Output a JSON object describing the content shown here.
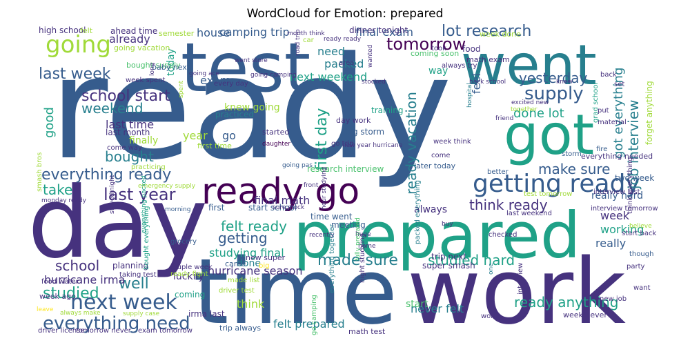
{
  "title": "WordCloud for Emotion: prepared",
  "palette": [
    "#440154",
    "#46327e",
    "#365c8d",
    "#277f8e",
    "#1fa187",
    "#4ac16d",
    "#a0da39",
    "#fde725"
  ],
  "words": [
    {
      "t": "ready",
      "c": 2,
      "v": 0
    },
    {
      "t": "time",
      "c": 2,
      "v": 0
    },
    {
      "t": "day",
      "c": 1,
      "v": 0
    },
    {
      "t": "work",
      "c": 1,
      "v": 0
    },
    {
      "t": "test",
      "c": 2,
      "v": 0
    },
    {
      "t": "went",
      "c": 3,
      "v": 0
    },
    {
      "t": "prepared",
      "c": 4,
      "v": 0
    },
    {
      "t": "got",
      "c": 4,
      "v": 0
    },
    {
      "t": "ready go",
      "c": 0,
      "v": 0
    },
    {
      "t": "getting ready",
      "c": 2,
      "v": 0
    },
    {
      "t": "going",
      "c": 6,
      "v": 0
    },
    {
      "t": "next week",
      "c": 2,
      "v": 0
    },
    {
      "t": "everything need",
      "c": 2,
      "v": 0
    },
    {
      "t": "last week",
      "c": 2,
      "v": 0
    },
    {
      "t": "everything ready",
      "c": 2,
      "v": 0
    },
    {
      "t": "tomorrow",
      "c": 0,
      "v": 0
    },
    {
      "t": "supply",
      "c": 2,
      "v": 0
    },
    {
      "t": "school start",
      "c": 1,
      "v": 0
    },
    {
      "t": "last year",
      "c": 1,
      "v": 0
    },
    {
      "t": "lot research",
      "c": 2,
      "v": 0
    },
    {
      "t": "job interview",
      "c": 3,
      "v": 1
    },
    {
      "t": "ready vacation",
      "c": 3,
      "v": 1
    },
    {
      "t": "first day",
      "c": 4,
      "v": 1
    },
    {
      "t": "make sure",
      "c": 2,
      "v": 0
    },
    {
      "t": "think ready",
      "c": 1,
      "v": 0
    },
    {
      "t": "felt ready",
      "c": 4,
      "v": 0
    },
    {
      "t": "ready anything",
      "c": 4,
      "v": 0
    },
    {
      "t": "studied hard",
      "c": 4,
      "v": 0
    },
    {
      "t": "made sure",
      "c": 3,
      "v": 0
    },
    {
      "t": "yesterday",
      "c": 2,
      "v": 0
    },
    {
      "t": "weekend",
      "c": 3,
      "v": 0
    },
    {
      "t": "bought",
      "c": 3,
      "v": 0
    },
    {
      "t": "school",
      "c": 1,
      "v": 0
    },
    {
      "t": "studied",
      "c": 4,
      "v": 0
    },
    {
      "t": "well",
      "c": 3,
      "v": 0
    },
    {
      "t": "getting",
      "c": 2,
      "v": 0
    },
    {
      "t": "take",
      "c": 4,
      "v": 0
    },
    {
      "t": "done lot",
      "c": 4,
      "v": 0
    },
    {
      "t": "got everything",
      "c": 3,
      "v": 1
    },
    {
      "t": "forget anything",
      "c": 6,
      "v": 1
    },
    {
      "t": "camping trip",
      "c": 2,
      "v": 0
    },
    {
      "t": "house",
      "c": 2,
      "v": 0
    },
    {
      "t": "final exam",
      "c": 2,
      "v": 0
    },
    {
      "t": "need",
      "c": 3,
      "v": 0
    },
    {
      "t": "packed",
      "c": 3,
      "v": 0
    },
    {
      "t": "exam",
      "c": 2,
      "v": 0
    },
    {
      "t": "next weekend",
      "c": 4,
      "v": 0
    },
    {
      "t": "already",
      "c": 1,
      "v": 0
    },
    {
      "t": "good",
      "c": 4,
      "v": 1
    },
    {
      "t": "last time",
      "c": 1,
      "v": 0
    },
    {
      "t": "finally",
      "c": 6,
      "v": 0
    },
    {
      "t": "year",
      "c": 6,
      "v": 0
    },
    {
      "t": "today",
      "c": 4,
      "v": 1
    },
    {
      "t": "week",
      "c": 1,
      "v": 0
    },
    {
      "t": "working",
      "c": 4,
      "v": 0
    },
    {
      "t": "really",
      "c": 2,
      "v": 0
    },
    {
      "t": "feel",
      "c": 2,
      "v": 1
    },
    {
      "t": "way",
      "c": 4,
      "v": 0
    },
    {
      "t": "always",
      "c": 1,
      "v": 0
    },
    {
      "t": "never felt",
      "c": 3,
      "v": 0
    },
    {
      "t": "felt prepared",
      "c": 3,
      "v": 0
    },
    {
      "t": "think",
      "c": 6,
      "v": 0
    },
    {
      "t": "hurricane irma",
      "c": 1,
      "v": 0
    },
    {
      "t": "hurricane season",
      "c": 1,
      "v": 0
    },
    {
      "t": "studying final",
      "c": 4,
      "v": 0
    },
    {
      "t": "knew going",
      "c": 6,
      "v": 0
    },
    {
      "t": "final math",
      "c": 1,
      "v": 0
    },
    {
      "t": "research interview",
      "c": 5,
      "v": 0
    },
    {
      "t": "go",
      "c": 2,
      "v": 0
    },
    {
      "t": "done",
      "c": 3,
      "v": 0
    },
    {
      "t": "luckily",
      "c": 1,
      "v": 0
    },
    {
      "t": "coming",
      "c": 4,
      "v": 0
    },
    {
      "t": "start",
      "c": 5,
      "v": 0
    },
    {
      "t": "really hard",
      "c": 2,
      "v": 0
    },
    {
      "t": "time went",
      "c": 2,
      "v": 0
    },
    {
      "t": "meeting",
      "c": 2,
      "v": 0
    },
    {
      "t": "first",
      "c": 2,
      "v": 0
    },
    {
      "t": "start school",
      "c": 2,
      "v": 0
    },
    {
      "t": "last month",
      "c": 1,
      "v": 0
    },
    {
      "t": "trip next",
      "c": 1,
      "v": 0
    },
    {
      "t": "super smash",
      "c": 1,
      "v": 0
    },
    {
      "t": "high school",
      "c": 1,
      "v": 0
    },
    {
      "t": "felt",
      "c": 6,
      "v": 0
    },
    {
      "t": "ahead time",
      "c": 1,
      "v": 0
    },
    {
      "t": "semester",
      "c": 6,
      "v": 0
    },
    {
      "t": "dinner tonight",
      "c": 1,
      "v": 0
    },
    {
      "t": "went store",
      "c": 1,
      "v": 0
    },
    {
      "t": "week done",
      "c": 6,
      "v": 0
    },
    {
      "t": "coming soon",
      "c": 5,
      "v": 0
    },
    {
      "t": "food",
      "c": 1,
      "v": 0
    },
    {
      "t": "math exam",
      "c": 1,
      "v": 0
    },
    {
      "t": "going vacation",
      "c": 6,
      "v": 0
    },
    {
      "t": "bought supply",
      "c": 5,
      "v": 0
    },
    {
      "t": "baby next",
      "c": 2,
      "v": 0
    },
    {
      "t": "week spent",
      "c": 1,
      "v": 0
    },
    {
      "t": "training",
      "c": 4,
      "v": 0
    },
    {
      "t": "day work",
      "c": 1,
      "v": 0
    },
    {
      "t": "big storm",
      "c": 2,
      "v": 0
    },
    {
      "t": "go trip",
      "c": 1,
      "v": 0
    },
    {
      "t": "started",
      "c": 1,
      "v": 0
    },
    {
      "t": "daughter",
      "c": 0,
      "v": 0
    },
    {
      "t": "practiced",
      "c": 3,
      "v": 0
    },
    {
      "t": "first time",
      "c": 6,
      "v": 0
    },
    {
      "t": "come way",
      "c": 1,
      "v": 0
    },
    {
      "t": "practicing",
      "c": 6,
      "v": 0
    },
    {
      "t": "emergency supply",
      "c": 6,
      "v": 0
    },
    {
      "t": "monday ready",
      "c": 1,
      "v": 0
    },
    {
      "t": "morning",
      "c": 2,
      "v": 0
    },
    {
      "t": "stayed night",
      "c": 1,
      "v": 1
    },
    {
      "t": "planning",
      "c": 1,
      "v": 0
    },
    {
      "t": "taking test",
      "c": 1,
      "v": 0
    },
    {
      "t": "couple week",
      "c": 1,
      "v": 0
    },
    {
      "t": "food water",
      "c": 1,
      "v": 0
    },
    {
      "t": "week ago",
      "c": 1,
      "v": 0
    },
    {
      "t": "leave",
      "c": 7,
      "v": 0
    },
    {
      "t": "always make",
      "c": 6,
      "v": 0
    },
    {
      "t": "supply case",
      "c": 6,
      "v": 0
    },
    {
      "t": "driver license",
      "c": 1,
      "v": 0
    },
    {
      "t": "tomorrow never",
      "c": 1,
      "v": 0
    },
    {
      "t": "exam tomorrow",
      "c": 1,
      "v": 0
    },
    {
      "t": "trip always",
      "c": 2,
      "v": 0
    },
    {
      "t": "math test",
      "c": 1,
      "v": 0
    },
    {
      "t": "week never",
      "c": 1,
      "v": 0
    },
    {
      "t": "world",
      "c": 1,
      "v": 0
    },
    {
      "t": "new super",
      "c": 1,
      "v": 0
    },
    {
      "t": "big",
      "c": 7,
      "v": 0
    },
    {
      "t": "came",
      "c": 2,
      "v": 0
    },
    {
      "t": "made list",
      "c": 6,
      "v": 0
    },
    {
      "t": "driver test",
      "c": 6,
      "v": 0
    },
    {
      "t": "ready fight",
      "c": 6,
      "v": 0
    },
    {
      "t": "irma last",
      "c": 1,
      "v": 0
    },
    {
      "t": "grocery",
      "c": 2,
      "v": 0
    },
    {
      "t": "everything packed",
      "c": 4,
      "v": 1
    },
    {
      "t": "bought everything",
      "c": 4,
      "v": 1
    },
    {
      "t": "smash bros",
      "c": 6,
      "v": 1
    },
    {
      "t": "grad school",
      "c": 4,
      "v": 1
    },
    {
      "t": "everything needed",
      "c": 1,
      "v": 0
    },
    {
      "t": "interview tomorrow",
      "c": 1,
      "v": 0
    },
    {
      "t": "interview last",
      "c": 1,
      "v": 0
    },
    {
      "t": "last weekend",
      "c": 1,
      "v": 0
    },
    {
      "t": "test tomorrow",
      "c": 6,
      "v": 0
    },
    {
      "t": "start back",
      "c": 1,
      "v": 0
    },
    {
      "t": "believe",
      "c": 6,
      "v": 0
    },
    {
      "t": "party",
      "c": 1,
      "v": 0
    },
    {
      "t": "though",
      "c": 2,
      "v": 0
    },
    {
      "t": "want",
      "c": 1,
      "v": 0
    },
    {
      "t": "new job",
      "c": 1,
      "v": 0
    },
    {
      "t": "think everything",
      "c": 1,
      "v": 1
    },
    {
      "t": "two week",
      "c": 2,
      "v": 0
    },
    {
      "t": "fire",
      "c": 2,
      "v": 0
    },
    {
      "t": "storm",
      "c": 2,
      "v": 0
    },
    {
      "t": "better",
      "c": 2,
      "v": 0
    },
    {
      "t": "later today",
      "c": 2,
      "v": 0
    },
    {
      "t": "come",
      "c": 1,
      "v": 0
    },
    {
      "t": "week think",
      "c": 1,
      "v": 0
    },
    {
      "t": "always try",
      "c": 1,
      "v": 0
    },
    {
      "t": "back school",
      "c": 1,
      "v": 0
    },
    {
      "t": "excited new",
      "c": 1,
      "v": 0
    },
    {
      "t": "friend",
      "c": 1,
      "v": 0
    },
    {
      "t": "put",
      "c": 1,
      "v": 0
    },
    {
      "t": "material",
      "c": 1,
      "v": 0
    },
    {
      "t": "back",
      "c": 1,
      "v": 0
    },
    {
      "t": "set",
      "c": 1,
      "v": 0
    },
    {
      "t": "knew",
      "c": 1,
      "v": 0
    },
    {
      "t": "took",
      "c": 1,
      "v": 0
    },
    {
      "t": "area",
      "c": 1,
      "v": 0
    },
    {
      "t": "stocked",
      "c": 1,
      "v": 0
    },
    {
      "t": "wanted",
      "c": 1,
      "v": 1
    },
    {
      "t": "every day",
      "c": 1,
      "v": 0
    },
    {
      "t": "going camping",
      "c": 1,
      "v": 0
    },
    {
      "t": "ready ready",
      "c": 1,
      "v": 0
    },
    {
      "t": "road trip",
      "c": 1,
      "v": 1
    },
    {
      "t": "car",
      "c": 6,
      "v": 0
    },
    {
      "t": "month think",
      "c": 1,
      "v": 0
    },
    {
      "t": "long",
      "c": 1,
      "v": 1
    },
    {
      "t": "spent",
      "c": 6,
      "v": 1
    },
    {
      "t": "going ace",
      "c": 1,
      "v": 0
    },
    {
      "t": "going pas",
      "c": 2,
      "v": 0
    },
    {
      "t": "front",
      "c": 1,
      "v": 0
    },
    {
      "t": "sure stock",
      "c": 1,
      "v": 0
    },
    {
      "t": "hour studying",
      "c": 1,
      "v": 1
    },
    {
      "t": "recently",
      "c": 1,
      "v": 0
    },
    {
      "t": "huge",
      "c": 1,
      "v": 0
    },
    {
      "t": "home",
      "c": 1,
      "v": 0
    },
    {
      "t": "fully prepared",
      "c": 5,
      "v": 1
    },
    {
      "t": "packed everything",
      "c": 3,
      "v": 1
    },
    {
      "t": "everything together",
      "c": 3,
      "v": 1
    },
    {
      "t": "night studying",
      "c": 1,
      "v": 1
    },
    {
      "t": "go camping",
      "c": 5,
      "v": 1
    },
    {
      "t": "checked",
      "c": 1,
      "v": 0
    },
    {
      "t": "buy",
      "c": 1,
      "v": 0
    },
    {
      "t": "one",
      "c": 3,
      "v": 1
    },
    {
      "t": "hospital",
      "c": 3,
      "v": 1
    },
    {
      "t": "together",
      "c": 6,
      "v": 0
    },
    {
      "t": "new year hurricane",
      "c": 1,
      "v": 0
    },
    {
      "t": "interview",
      "c": 1,
      "v": 1
    }
  ]
}
